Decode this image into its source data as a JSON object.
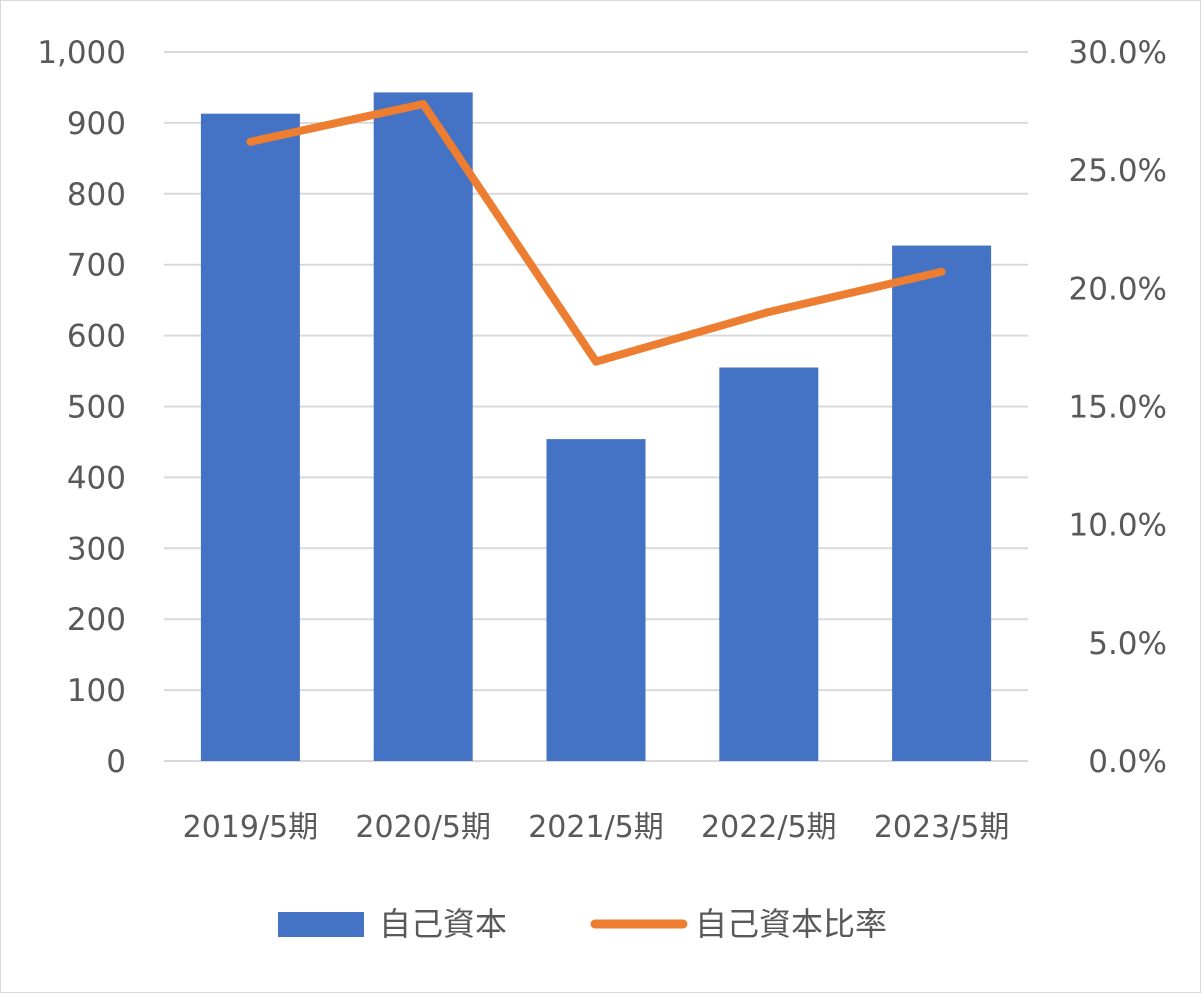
{
  "chart_data": {
    "type": "bar",
    "combo": "bar+line",
    "categories": [
      "2019/5期",
      "2020/5期",
      "2021/5期",
      "2022/5期",
      "2023/5期"
    ],
    "series": [
      {
        "name": "自己資本",
        "type": "bar",
        "axis": "left",
        "color": "#4472C4",
        "values": [
          913,
          943,
          454,
          555,
          727
        ]
      },
      {
        "name": "自己資本比率",
        "type": "line",
        "axis": "right",
        "color": "#ED7D31",
        "values": [
          26.2,
          27.8,
          16.9,
          19.0,
          20.7
        ]
      }
    ],
    "y_left": {
      "ylim": [
        0,
        1000
      ],
      "ticks": [
        0,
        100,
        200,
        300,
        400,
        500,
        600,
        700,
        800,
        900,
        1000
      ],
      "tick_labels": [
        "0",
        "100",
        "200",
        "300",
        "400",
        "500",
        "600",
        "700",
        "800",
        "900",
        "1,000"
      ]
    },
    "y_right": {
      "ylim": [
        0,
        30
      ],
      "ticks": [
        0,
        5,
        10,
        15,
        20,
        25,
        30
      ],
      "tick_labels": [
        "0.0%",
        "5.0%",
        "10.0%",
        "15.0%",
        "20.0%",
        "25.0%",
        "30.0%"
      ]
    },
    "grid": true,
    "legend_position": "bottom",
    "title": "",
    "xlabel": "",
    "ylabel": ""
  },
  "colors": {
    "gridline": "#d9d9d9",
    "text": "#595959",
    "background": "#ffffff"
  }
}
